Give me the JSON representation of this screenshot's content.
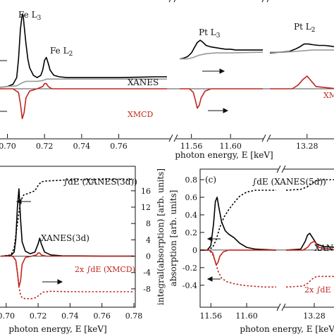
{
  "chart_data": [
    {
      "id": "top",
      "type": "line",
      "xlabel": "photon energy, E [keV]",
      "segments": [
        {
          "xlim": [
            0.696,
            0.786
          ],
          "ticks": [
            "0.70",
            "0.72",
            "0.74",
            "0.76"
          ],
          "tick_values": [
            0.7,
            0.72,
            0.74,
            0.76
          ]
        },
        {
          "xlim": [
            11.548,
            11.633
          ],
          "ticks": [
            "11.56",
            "11.60"
          ],
          "tick_values": [
            11.56,
            11.6
          ]
        },
        {
          "xlim": [
            13.255,
            13.3
          ],
          "ticks": [
            "13.28"
          ],
          "tick_values": [
            13.28
          ]
        }
      ],
      "annotations": [
        "Fe L3",
        "Fe L2",
        "Pt L3",
        "Pt L2",
        "XANES",
        "XMCD",
        "XM"
      ],
      "series": [
        {
          "name": "XANES",
          "color": "#000000",
          "x": [
            0.696,
            0.7,
            0.703,
            0.705,
            0.706,
            0.707,
            0.708,
            0.7085,
            0.709,
            0.71,
            0.711,
            0.712,
            0.714,
            0.716,
            0.718,
            0.719,
            0.72,
            0.721,
            0.722,
            0.723,
            0.725,
            0.728,
            0.732,
            0.74,
            0.75,
            0.76,
            0.77,
            0.78,
            0.786,
            11.548,
            11.552,
            11.556,
            11.56,
            11.563,
            11.566,
            11.569,
            11.572,
            11.575,
            11.58,
            11.585,
            11.59,
            11.595,
            11.6,
            11.605,
            11.61,
            11.62,
            11.633,
            13.255,
            13.262,
            13.268,
            13.272,
            13.275,
            13.278,
            13.281,
            13.284,
            13.288,
            13.292,
            13.296,
            13.3
          ],
          "y": [
            0.02,
            0.03,
            0.06,
            0.15,
            0.4,
            0.8,
            1.0,
            0.98,
            0.85,
            0.6,
            0.4,
            0.28,
            0.18,
            0.15,
            0.18,
            0.25,
            0.38,
            0.42,
            0.34,
            0.25,
            0.18,
            0.16,
            0.15,
            0.15,
            0.15,
            0.15,
            0.155,
            0.16,
            0.16,
            0.4,
            0.41,
            0.43,
            0.48,
            0.55,
            0.62,
            0.65,
            0.62,
            0.58,
            0.56,
            0.55,
            0.54,
            0.53,
            0.53,
            0.52,
            0.52,
            0.52,
            0.52,
            0.48,
            0.49,
            0.5,
            0.53,
            0.56,
            0.6,
            0.6,
            0.59,
            0.58,
            0.58,
            0.57,
            0.56
          ]
        },
        {
          "name": "",
          "color": "#999999",
          "x": [
            0.696,
            0.7,
            0.705,
            0.708,
            0.71,
            0.713,
            0.716,
            0.719,
            0.721,
            0.724,
            0.73,
            0.74,
            0.76,
            0.786,
            11.548,
            11.556,
            11.562,
            11.568,
            11.575,
            11.585,
            11.6,
            11.633,
            13.255,
            13.265,
            13.272,
            13.278,
            13.284,
            13.3
          ],
          "y": [
            0.02,
            0.03,
            0.04,
            0.08,
            0.1,
            0.1,
            0.1,
            0.11,
            0.13,
            0.13,
            0.13,
            0.13,
            0.13,
            0.13,
            0.4,
            0.4,
            0.42,
            0.45,
            0.47,
            0.48,
            0.48,
            0.49,
            0.49,
            0.49,
            0.5,
            0.51,
            0.52,
            0.52
          ]
        },
        {
          "name": "XMCD",
          "color": "#c0261d",
          "x": [
            0.696,
            0.703,
            0.706,
            0.707,
            0.708,
            0.709,
            0.71,
            0.712,
            0.716,
            0.719,
            0.72,
            0.721,
            0.722,
            0.724,
            0.73,
            0.76,
            0.786,
            11.548,
            11.558,
            11.562,
            11.564,
            11.566,
            11.568,
            11.57,
            11.574,
            11.58,
            11.59,
            11.6,
            11.633,
            13.255,
            13.27,
            13.274,
            13.277,
            13.28,
            13.283,
            13.286,
            13.3
          ],
          "y": [
            0.0,
            0.0,
            -0.05,
            -0.2,
            -0.4,
            -0.32,
            -0.12,
            -0.03,
            0.0,
            0.03,
            0.07,
            0.07,
            0.03,
            0.0,
            0.0,
            0.0,
            0.0,
            0.0,
            0.0,
            -0.05,
            -0.15,
            -0.26,
            -0.22,
            -0.12,
            -0.03,
            0.0,
            0.0,
            0.0,
            0.0,
            0.0,
            0.0,
            0.05,
            0.12,
            0.17,
            0.1,
            0.03,
            0.0
          ]
        }
      ]
    },
    {
      "id": "bottom-left",
      "type": "line",
      "xlabel": "photon energy, E [keV]",
      "ylabel_right": "integral(absorption) [arb. units]",
      "xlim": [
        0.697,
        0.78
      ],
      "xticks": [
        "0.70",
        "0.72",
        "0.74",
        "0.76",
        "0.78"
      ],
      "xtick_values": [
        0.7,
        0.72,
        0.74,
        0.76,
        0.78
      ],
      "y2lim": [
        -12.5,
        22
      ],
      "y2ticks": [
        "-8",
        "-4",
        "0",
        "4",
        "8",
        "12",
        "16"
      ],
      "y2tick_values": [
        -8,
        -4,
        0,
        4,
        8,
        12,
        16
      ],
      "annotations": [
        "∫dE (XANES(3d))",
        "XANES(3d)",
        "2x ∫dE (XMCD)"
      ],
      "series": [
        {
          "name": "XANES(3d)",
          "color": "#000000",
          "x": [
            0.697,
            0.703,
            0.705,
            0.706,
            0.707,
            0.708,
            0.709,
            0.71,
            0.712,
            0.715,
            0.718,
            0.72,
            0.721,
            0.722,
            0.724,
            0.728,
            0.735,
            0.76,
            0.78
          ],
          "y": [
            0.0,
            0.2,
            1.0,
            4.0,
            12.0,
            16.5,
            9.0,
            3.5,
            1.2,
            0.6,
            1.0,
            3.0,
            4.4,
            3.0,
            1.0,
            0.3,
            0.1,
            0.0,
            0.0
          ]
        },
        {
          "name": "∫dE (XANES(3d))",
          "color": "#000000",
          "dashed": true,
          "x": [
            0.697,
            0.703,
            0.705,
            0.707,
            0.709,
            0.711,
            0.714,
            0.718,
            0.72,
            0.722,
            0.725,
            0.73,
            0.74,
            0.76,
            0.78
          ],
          "y": [
            0.0,
            0.3,
            2.0,
            8.0,
            13.5,
            15.0,
            15.4,
            16.0,
            17.3,
            18.2,
            18.4,
            18.5,
            18.7,
            18.8,
            18.8
          ]
        },
        {
          "name": "XMCD",
          "color": "#c0261d",
          "x": [
            0.697,
            0.704,
            0.706,
            0.707,
            0.708,
            0.709,
            0.71,
            0.712,
            0.716,
            0.719,
            0.72,
            0.721,
            0.722,
            0.725,
            0.78
          ],
          "y": [
            0.0,
            0.0,
            -1.0,
            -4.0,
            -7.5,
            -6.0,
            -2.0,
            -0.3,
            0.0,
            0.3,
            0.8,
            0.8,
            0.3,
            0.0,
            0.0
          ]
        },
        {
          "name": "2x ∫dE (XMCD)",
          "color": "#c0261d",
          "dashed": true,
          "x": [
            0.697,
            0.704,
            0.706,
            0.707,
            0.708,
            0.709,
            0.71,
            0.712,
            0.716,
            0.719,
            0.721,
            0.723,
            0.728,
            0.74,
            0.76,
            0.78
          ],
          "y": [
            0.0,
            0.0,
            -1.0,
            -4.0,
            -7.5,
            -9.5,
            -10.2,
            -10.4,
            -10.4,
            -10.1,
            -9.4,
            -8.8,
            -8.6,
            -8.7,
            -8.7,
            -8.7
          ]
        }
      ]
    },
    {
      "id": "bottom-right",
      "type": "line",
      "panel_label": "(c)",
      "xlabel": "photon energy, E [keV]",
      "ylabel": "absorption [arb. units]",
      "ylim": [
        -0.65,
        0.92
      ],
      "yticks": [
        "-0.4",
        "-0.2",
        "0",
        "0.2",
        "0.4",
        "0.6",
        "0.8"
      ],
      "ytick_values": [
        -0.4,
        -0.2,
        0,
        0.2,
        0.4,
        0.6,
        0.8
      ],
      "segments": [
        {
          "xlim": [
            11.548,
            11.633
          ],
          "ticks": [
            "11.56",
            "11.60"
          ],
          "tick_values": [
            11.56,
            11.6
          ]
        },
        {
          "xlim": [
            13.255,
            13.3
          ],
          "ticks": [
            "13.28"
          ],
          "tick_values": [
            13.28
          ]
        }
      ],
      "annotations": [
        "∫dE (XANES(5d))",
        "XAN",
        "2x ∫dE ("
      ],
      "series": [
        {
          "name": "XANES",
          "color": "#000000",
          "x": [
            11.548,
            11.556,
            11.56,
            11.563,
            11.565,
            11.567,
            11.569,
            11.572,
            11.576,
            11.58,
            11.586,
            11.592,
            11.6,
            11.61,
            11.633,
            13.255,
            13.268,
            13.272,
            13.274,
            13.276,
            13.279,
            13.282,
            13.288,
            13.3
          ],
          "y": [
            0.0,
            0.0,
            0.05,
            0.3,
            0.55,
            0.6,
            0.48,
            0.32,
            0.22,
            0.18,
            0.14,
            0.08,
            0.03,
            0.01,
            0.0,
            0.0,
            0.01,
            0.1,
            0.17,
            0.19,
            0.13,
            0.07,
            0.04,
            0.03
          ]
        },
        {
          "name": "∫dE (XANES(5d))",
          "color": "#000000",
          "dashed": true,
          "x": [
            11.548,
            11.556,
            11.562,
            11.566,
            11.57,
            11.575,
            11.58,
            11.586,
            11.592,
            11.6,
            11.61,
            11.633,
            13.255,
            13.268,
            13.274,
            13.278,
            13.282,
            13.288,
            13.3
          ],
          "y": [
            0.0,
            0.0,
            0.03,
            0.12,
            0.26,
            0.38,
            0.46,
            0.54,
            0.61,
            0.66,
            0.68,
            0.68,
            0.68,
            0.69,
            0.72,
            0.76,
            0.79,
            0.8,
            0.8
          ]
        },
        {
          "name": "XMCD",
          "color": "#c0261d",
          "x": [
            11.548,
            11.558,
            11.562,
            11.564,
            11.566,
            11.568,
            11.57,
            11.574,
            11.58,
            11.633,
            13.255,
            13.27,
            13.274,
            13.277,
            13.28,
            13.284,
            13.3
          ],
          "y": [
            0.0,
            0.0,
            -0.03,
            -0.1,
            -0.17,
            -0.14,
            -0.07,
            -0.02,
            0.0,
            0.0,
            0.0,
            0.0,
            0.03,
            0.08,
            0.1,
            0.03,
            0.0
          ]
        },
        {
          "name": "2x ∫dE (XMCD)",
          "color": "#c0261d",
          "dashed": true,
          "x": [
            11.548,
            11.558,
            11.562,
            11.565,
            11.568,
            11.572,
            11.578,
            11.585,
            11.595,
            11.605,
            11.62,
            11.633,
            13.255,
            13.27,
            13.274,
            13.278,
            13.282,
            13.288,
            13.3
          ],
          "y": [
            0.0,
            0.0,
            -0.05,
            -0.13,
            -0.24,
            -0.32,
            -0.36,
            -0.38,
            -0.4,
            -0.41,
            -0.42,
            -0.42,
            -0.42,
            -0.41,
            -0.38,
            -0.33,
            -0.3,
            -0.3,
            -0.3
          ]
        }
      ]
    }
  ]
}
